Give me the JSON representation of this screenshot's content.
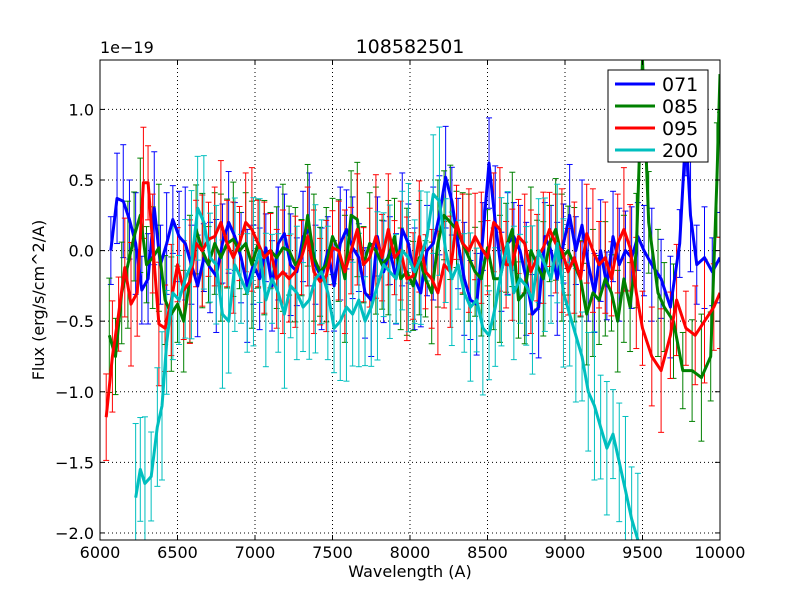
{
  "chart_data": {
    "type": "line",
    "title": "108582501",
    "xlabel": "Wavelength (A)",
    "ylabel": "Flux (erg/s/cm^2/A)",
    "offset_text": "1e−19",
    "xlim": [
      6000,
      10000
    ],
    "ylim": [
      -2.05,
      1.35
    ],
    "xticks": [
      6000,
      6500,
      7000,
      7500,
      8000,
      8500,
      9000,
      9500,
      10000
    ],
    "yticks": [
      -2.0,
      -1.5,
      -1.0,
      -0.5,
      0.0,
      0.5,
      1.0
    ],
    "xtick_labels": [
      "6000",
      "6500",
      "7000",
      "7500",
      "8000",
      "8500",
      "9000",
      "9500",
      "10000"
    ],
    "ytick_labels": [
      "−2.0",
      "−1.5",
      "−1.0",
      "−0.5",
      "0.0",
      "0.5",
      "1.0"
    ],
    "grid": true,
    "legend_position": "top-right",
    "series": [
      {
        "name": "071",
        "color": "#0000ff",
        "error_bar_halfwidth": 0.32,
        "x": [
          6070,
          6110,
          6150,
          6190,
          6230,
          6270,
          6310,
          6350,
          6390,
          6430,
          6470,
          6510,
          6550,
          6590,
          6630,
          6670,
          6710,
          6750,
          6790,
          6830,
          6870,
          6910,
          6950,
          6990,
          7030,
          7070,
          7110,
          7150,
          7190,
          7230,
          7270,
          7310,
          7350,
          7390,
          7430,
          7470,
          7510,
          7550,
          7590,
          7630,
          7670,
          7710,
          7750,
          7790,
          7830,
          7870,
          7910,
          7950,
          7990,
          8030,
          8070,
          8110,
          8150,
          8190,
          8230,
          8270,
          8310,
          8350,
          8390,
          8430,
          8470,
          8510,
          8550,
          8590,
          8630,
          8670,
          8710,
          8750,
          8790,
          8830,
          8870,
          8910,
          8950,
          8990,
          9030,
          9070,
          9110,
          9150,
          9190,
          9230,
          9270,
          9310,
          9350,
          9390,
          9430,
          9470,
          9510,
          9560,
          9620,
          9680,
          9740,
          9780,
          9810,
          9850,
          9900,
          9950,
          10000
        ],
        "y": [
          0.0,
          0.37,
          0.35,
          0.22,
          0.05,
          -0.28,
          -0.2,
          0.3,
          -0.1,
          0.05,
          0.22,
          0.1,
          0.05,
          -0.1,
          -0.25,
          -0.05,
          -0.12,
          -0.18,
          0.05,
          0.2,
          0.1,
          -0.05,
          -0.25,
          -0.1,
          -0.2,
          0.02,
          -0.25,
          0.05,
          0.12,
          -0.1,
          -0.15,
          0.1,
          0.15,
          -0.1,
          -0.2,
          0.0,
          -0.25,
          0.05,
          0.15,
          0.02,
          -0.05,
          -0.3,
          -0.35,
          0.1,
          -0.15,
          0.0,
          -0.2,
          0.15,
          0.05,
          -0.2,
          -0.3,
          0.0,
          0.05,
          0.25,
          0.52,
          0.35,
          0.05,
          -0.2,
          -0.35,
          -0.38,
          0.1,
          0.62,
          0.2,
          -0.15,
          0.05,
          0.1,
          0.0,
          -0.2,
          -0.45,
          -0.4,
          0.1,
          0.0,
          -0.2,
          0.05,
          0.25,
          0.0,
          0.18,
          -0.1,
          -0.3,
          0.0,
          -0.25,
          0.1,
          -0.1,
          0.0,
          -0.05,
          0.1,
          0.0,
          -0.1,
          -0.2,
          -0.4,
          0.05,
          0.85,
          0.25,
          -0.1,
          -0.05,
          -0.15,
          -0.05
        ]
      },
      {
        "name": "085",
        "color": "#008000",
        "error_bar_halfwidth": 0.36,
        "x": [
          6060,
          6100,
          6140,
          6180,
          6220,
          6260,
          6300,
          6340,
          6380,
          6420,
          6460,
          6500,
          6540,
          6580,
          6620,
          6660,
          6700,
          6740,
          6780,
          6820,
          6860,
          6900,
          6940,
          6980,
          7020,
          7060,
          7100,
          7140,
          7180,
          7220,
          7260,
          7300,
          7340,
          7380,
          7420,
          7460,
          7500,
          7540,
          7580,
          7620,
          7660,
          7700,
          7740,
          7780,
          7820,
          7860,
          7900,
          7940,
          7980,
          8020,
          8060,
          8100,
          8140,
          8180,
          8220,
          8260,
          8300,
          8340,
          8380,
          8420,
          8460,
          8500,
          8540,
          8580,
          8620,
          8660,
          8700,
          8740,
          8780,
          8820,
          8860,
          8900,
          8940,
          8980,
          9020,
          9060,
          9100,
          9140,
          9180,
          9220,
          9260,
          9300,
          9340,
          9380,
          9420,
          9460,
          9500,
          9540,
          9600,
          9640,
          9700,
          9760,
          9820,
          9880,
          9940,
          9980,
          10000
        ],
        "y": [
          -0.6,
          -0.75,
          -0.3,
          -0.1,
          0.1,
          0.25,
          -0.1,
          -0.05,
          0.02,
          -0.35,
          -0.45,
          -0.38,
          -0.5,
          -0.2,
          0.15,
          0.0,
          -0.1,
          0.05,
          -0.05,
          0.05,
          0.08,
          0.0,
          0.05,
          -0.1,
          0.05,
          -0.05,
          0.0,
          -0.05,
          0.02,
          0.0,
          -0.1,
          -0.05,
          0.25,
          -0.05,
          -0.15,
          -0.1,
          0.1,
          0.0,
          -0.2,
          0.25,
          0.22,
          -0.1,
          0.05,
          0.0,
          -0.1,
          -0.05,
          0.1,
          -0.2,
          -0.15,
          -0.25,
          -0.05,
          -0.2,
          -0.3,
          0.05,
          0.25,
          0.2,
          0.15,
          0.05,
          -0.05,
          -0.15,
          -0.2,
          0.02,
          -0.2,
          -0.2,
          0.02,
          0.15,
          -0.35,
          -0.3,
          0.0,
          -0.1,
          -0.2,
          0.05,
          0.15,
          -0.05,
          0.0,
          -0.1,
          -0.2,
          -0.45,
          -0.3,
          -0.35,
          -0.2,
          -0.3,
          -0.5,
          -0.2,
          -0.4,
          0.0,
          1.35,
          0.2,
          -0.3,
          -0.4,
          -0.5,
          -0.85,
          -0.85,
          -0.9,
          -0.75,
          0.5,
          1.25
        ]
      },
      {
        "name": "095",
        "color": "#ff0000",
        "error_bar_halfwidth": 0.35,
        "x": [
          6040,
          6080,
          6120,
          6160,
          6200,
          6240,
          6280,
          6310,
          6340,
          6380,
          6420,
          6460,
          6500,
          6540,
          6580,
          6620,
          6660,
          6700,
          6740,
          6780,
          6820,
          6860,
          6900,
          6940,
          6980,
          7020,
          7060,
          7100,
          7140,
          7180,
          7220,
          7260,
          7300,
          7340,
          7380,
          7420,
          7460,
          7500,
          7540,
          7580,
          7620,
          7660,
          7700,
          7740,
          7780,
          7820,
          7860,
          7900,
          7940,
          7980,
          8020,
          8060,
          8100,
          8140,
          8180,
          8220,
          8260,
          8300,
          8340,
          8380,
          8420,
          8460,
          8500,
          8540,
          8580,
          8620,
          8660,
          8700,
          8740,
          8780,
          8820,
          8860,
          8900,
          8940,
          8980,
          9020,
          9060,
          9100,
          9140,
          9180,
          9220,
          9260,
          9300,
          9340,
          9380,
          9420,
          9460,
          9500,
          9560,
          9620,
          9680,
          9720,
          9780,
          9840,
          9900,
          9960,
          10000
        ],
        "y": [
          -1.18,
          -0.75,
          -0.45,
          -0.12,
          -0.38,
          -0.3,
          0.48,
          0.48,
          0.05,
          -0.52,
          -0.55,
          -0.35,
          -0.1,
          -0.28,
          -0.22,
          0.05,
          0.0,
          0.08,
          0.1,
          0.2,
          0.05,
          -0.05,
          0.05,
          0.2,
          0.15,
          0.05,
          -0.05,
          0.0,
          -0.2,
          -0.15,
          -0.2,
          -0.15,
          -0.05,
          0.1,
          -0.15,
          -0.22,
          -0.18,
          0.02,
          0.0,
          -0.15,
          0.0,
          0.15,
          -0.1,
          -0.05,
          0.1,
          -0.05,
          0.15,
          -0.05,
          0.0,
          -0.2,
          -0.18,
          0.1,
          -0.15,
          -0.2,
          -0.3,
          -0.1,
          -0.15,
          0.2,
          0.05,
          0.0,
          0.1,
          0.02,
          -0.05,
          0.2,
          0.15,
          -0.1,
          -0.1,
          0.1,
          0.05,
          -0.15,
          -0.05,
          0.02,
          0.15,
          0.05,
          0.0,
          -0.15,
          -0.05,
          -0.2,
          0.12,
          0.0,
          -0.1,
          -0.05,
          -0.2,
          0.05,
          0.15,
          0.02,
          -0.3,
          -0.55,
          -0.75,
          -0.85,
          -0.6,
          -0.35,
          -0.55,
          -0.6,
          -0.5,
          -0.4,
          -0.3
        ]
      },
      {
        "name": "200",
        "color": "#00bfbf",
        "error_bar_halfwidth": 0.42,
        "x": [
          6230,
          6260,
          6290,
          6330,
          6370,
          6400,
          6430,
          6470,
          6510,
          6550,
          6590,
          6630,
          6670,
          6710,
          6750,
          6790,
          6830,
          6870,
          6910,
          6950,
          6990,
          7030,
          7070,
          7110,
          7150,
          7190,
          7230,
          7270,
          7310,
          7350,
          7390,
          7430,
          7470,
          7510,
          7550,
          7590,
          7630,
          7670,
          7710,
          7750,
          7790,
          7830,
          7870,
          7910,
          7950,
          7990,
          8030,
          8070,
          8110,
          8150,
          8190,
          8230,
          8270,
          8310,
          8350,
          8390,
          8430,
          8470,
          8510,
          8550,
          8590,
          8630,
          8670,
          8710,
          8750,
          8790,
          8830,
          8870,
          8910,
          8950,
          8990,
          9030,
          9070,
          9110,
          9150,
          9190,
          9230,
          9270,
          9310,
          9350,
          9390,
          9430,
          9470
        ],
        "y": [
          -1.75,
          -1.55,
          -1.65,
          -1.6,
          -1.25,
          -1.1,
          -0.65,
          -0.3,
          -0.35,
          -0.2,
          -0.1,
          0.3,
          0.2,
          -0.05,
          -0.1,
          -0.45,
          -0.5,
          -0.1,
          -0.2,
          -0.3,
          -0.15,
          0.0,
          -0.35,
          -0.2,
          -0.3,
          -0.45,
          -0.25,
          -0.3,
          -0.4,
          -0.35,
          -0.2,
          -0.15,
          -0.3,
          -0.55,
          -0.5,
          -0.4,
          -0.45,
          -0.35,
          -0.5,
          -0.4,
          -0.25,
          -0.1,
          -0.15,
          -0.2,
          0.0,
          -0.05,
          -0.15,
          -0.05,
          0.1,
          0.4,
          0.35,
          0.0,
          -0.2,
          -0.1,
          -0.3,
          -0.4,
          -0.35,
          -0.55,
          -0.6,
          -0.4,
          -0.15,
          0.05,
          -0.3,
          -0.2,
          -0.25,
          -0.35,
          0.0,
          -0.1,
          -0.2,
          0.05,
          -0.3,
          -0.45,
          -0.6,
          -0.75,
          -1.0,
          -1.1,
          -1.25,
          -1.4,
          -1.3,
          -1.5,
          -1.7,
          -1.9,
          -2.05
        ]
      }
    ]
  }
}
